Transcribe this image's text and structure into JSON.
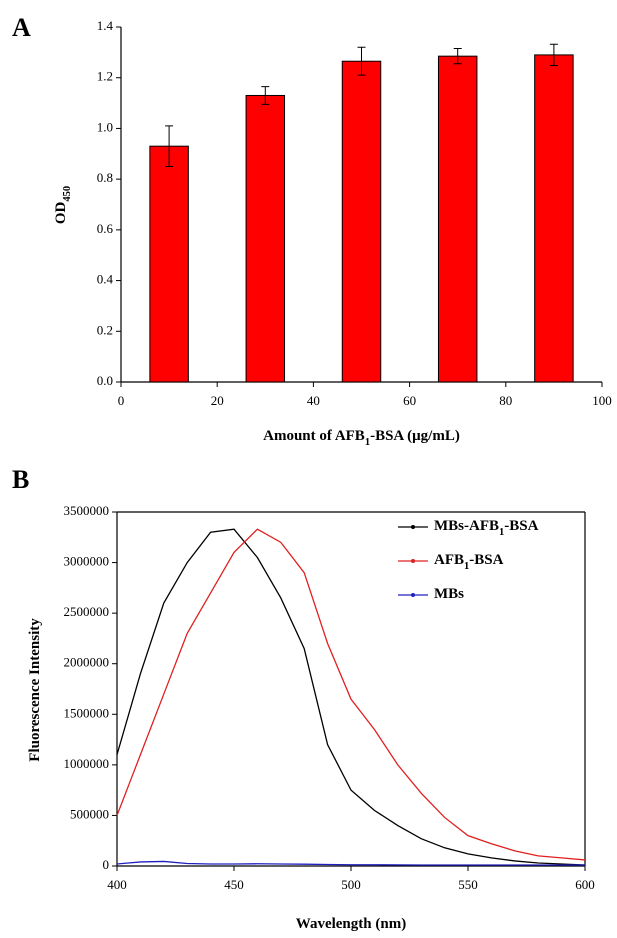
{
  "chart_data": [
    {
      "type": "bar",
      "panel_label": "A",
      "xlabel": [
        "Amount of AFB",
        "1",
        "-BSA (μg/mL)"
      ],
      "ylabel": [
        "OD",
        "450"
      ],
      "x": [
        10,
        30,
        50,
        70,
        90
      ],
      "values": [
        0.93,
        1.13,
        1.265,
        1.285,
        1.29
      ],
      "errors": [
        0.08,
        0.035,
        0.055,
        0.03,
        0.042
      ],
      "color": "#ff0000",
      "xlim": [
        0,
        100
      ],
      "xticks": [
        0,
        20,
        40,
        60,
        80,
        100
      ],
      "ylim": [
        0,
        1.4
      ],
      "yticks": [
        {
          "value": 0,
          "label": "0.0"
        },
        0.2,
        0.4,
        0.6,
        0.8,
        {
          "value": 1,
          "label": "1.0"
        },
        1.2,
        1.4
      ]
    },
    {
      "type": "line",
      "panel_label": "B",
      "xlabel": [
        "Wavelength (nm)"
      ],
      "ylabel": [
        "Fluorescence Intensity"
      ],
      "x": [
        400,
        410,
        420,
        430,
        440,
        450,
        460,
        470,
        480,
        490,
        500,
        510,
        520,
        530,
        540,
        550,
        560,
        570,
        580,
        590,
        600
      ],
      "series": [
        {
          "name": [
            "MBs-AFB",
            "1",
            "-BSA"
          ],
          "color": "#000000",
          "values": [
            1100000,
            1900000,
            2600000,
            3000000,
            3300000,
            3330000,
            3050000,
            2650000,
            2150000,
            1200000,
            750000,
            550000,
            400000,
            270000,
            180000,
            120000,
            80000,
            50000,
            30000,
            20000,
            10000
          ]
        },
        {
          "name": [
            "AFB",
            "1",
            "-BSA"
          ],
          "color": "#e02020",
          "values": [
            500000,
            1100000,
            1700000,
            2300000,
            2700000,
            3100000,
            3330000,
            3200000,
            2900000,
            2200000,
            1650000,
            1350000,
            1000000,
            720000,
            480000,
            300000,
            220000,
            150000,
            100000,
            80000,
            60000
          ]
        },
        {
          "name": [
            "MBs"
          ],
          "color": "#2020c0",
          "values": [
            20000,
            40000,
            45000,
            25000,
            20000,
            20000,
            22000,
            20000,
            18000,
            15000,
            12000,
            12000,
            11000,
            10000,
            10000,
            10000,
            10000,
            10000,
            10000,
            10000,
            10000
          ]
        }
      ],
      "xlim": [
        400,
        600
      ],
      "xticks": [
        400,
        450,
        500,
        550,
        600
      ],
      "ylim": [
        0,
        3500000
      ],
      "yticks": [
        0,
        500000,
        1000000,
        1500000,
        2000000,
        2500000,
        3000000,
        3500000
      ],
      "legend": "upper right"
    }
  ]
}
